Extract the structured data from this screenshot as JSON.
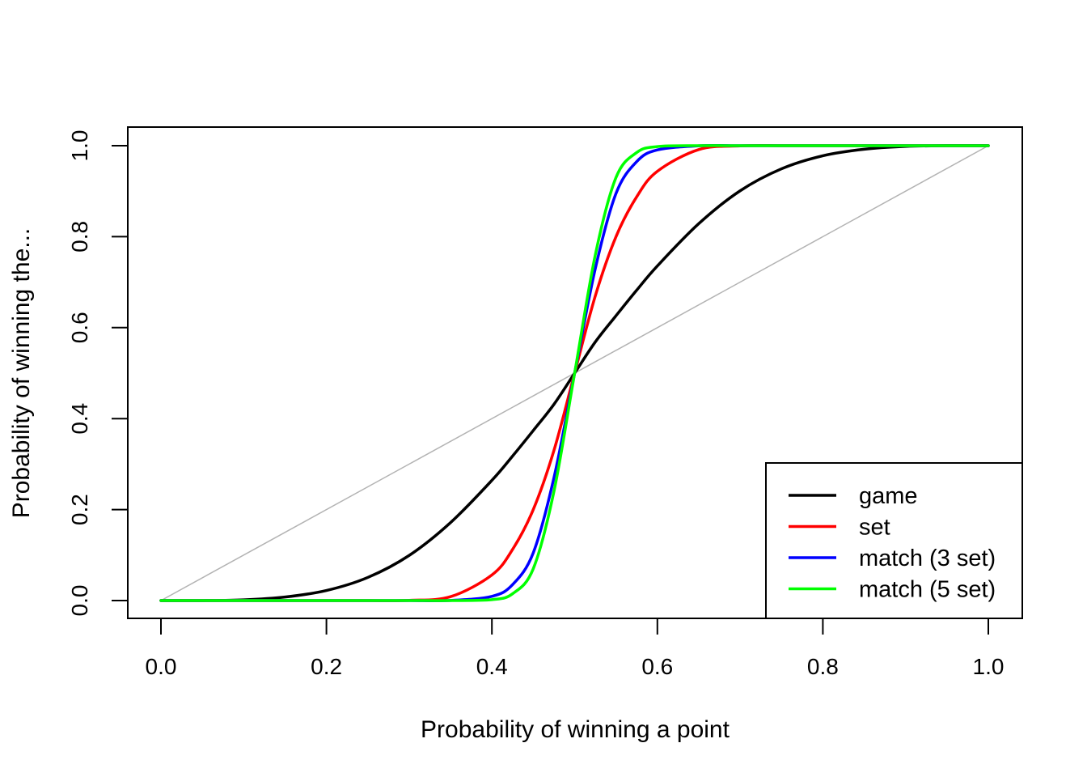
{
  "chart_data": {
    "type": "line",
    "title": "",
    "xlabel": "Probability of winning a point",
    "ylabel": "Probability of winning the...",
    "xlim": [
      0,
      1
    ],
    "ylim": [
      0,
      1
    ],
    "x_ticks": [
      "0.0",
      "0.2",
      "0.4",
      "0.6",
      "0.8",
      "1.0"
    ],
    "y_ticks": [
      "0.0",
      "0.2",
      "0.4",
      "0.6",
      "0.8",
      "1.0"
    ],
    "grid": false,
    "legend_position": "bottom-right",
    "reference_line": {
      "x": [
        0,
        1
      ],
      "y": [
        0,
        1
      ],
      "color": "#b3b3b3"
    },
    "x": [
      0.0,
      0.05,
      0.1,
      0.15,
      0.2,
      0.25,
      0.3,
      0.35,
      0.4,
      0.425,
      0.45,
      0.475,
      0.5,
      0.525,
      0.55,
      0.575,
      0.6,
      0.65,
      0.7,
      0.75,
      0.8,
      0.85,
      0.9,
      0.95,
      1.0
    ],
    "series": [
      {
        "name": "game",
        "color": "#000000",
        "values": [
          0.0,
          0.0001,
          0.0016,
          0.0078,
          0.0221,
          0.0508,
          0.0992,
          0.1714,
          0.2643,
          0.3177,
          0.3738,
          0.4314,
          0.5,
          0.5686,
          0.6262,
          0.6823,
          0.7357,
          0.8286,
          0.9008,
          0.9492,
          0.9779,
          0.9922,
          0.9984,
          0.9999,
          1.0
        ]
      },
      {
        "name": "set",
        "color": "#ff0000",
        "values": [
          0.0,
          0.0,
          0.0,
          0.0,
          0.0,
          0.0,
          0.0005,
          0.0085,
          0.0563,
          0.1124,
          0.2,
          0.33,
          0.5,
          0.67,
          0.8,
          0.8876,
          0.9437,
          0.9915,
          0.9995,
          1.0,
          1.0,
          1.0,
          1.0,
          1.0,
          1.0
        ]
      },
      {
        "name": "match (3 set)",
        "color": "#0000ff",
        "values": [
          0.0,
          0.0,
          0.0,
          0.0,
          0.0,
          0.0,
          0.0,
          0.0002,
          0.0093,
          0.035,
          0.105,
          0.27,
          0.5,
          0.73,
          0.895,
          0.965,
          0.9907,
          0.9998,
          1.0,
          1.0,
          1.0,
          1.0,
          1.0,
          1.0,
          1.0
        ]
      },
      {
        "name": "match (5 set)",
        "color": "#00ff00",
        "values": [
          0.0,
          0.0,
          0.0,
          0.0,
          0.0,
          0.0,
          0.0,
          0.0,
          0.002,
          0.015,
          0.07,
          0.24,
          0.5,
          0.76,
          0.93,
          0.985,
          0.998,
          1.0,
          1.0,
          1.0,
          1.0,
          1.0,
          1.0,
          1.0,
          1.0
        ]
      }
    ]
  }
}
